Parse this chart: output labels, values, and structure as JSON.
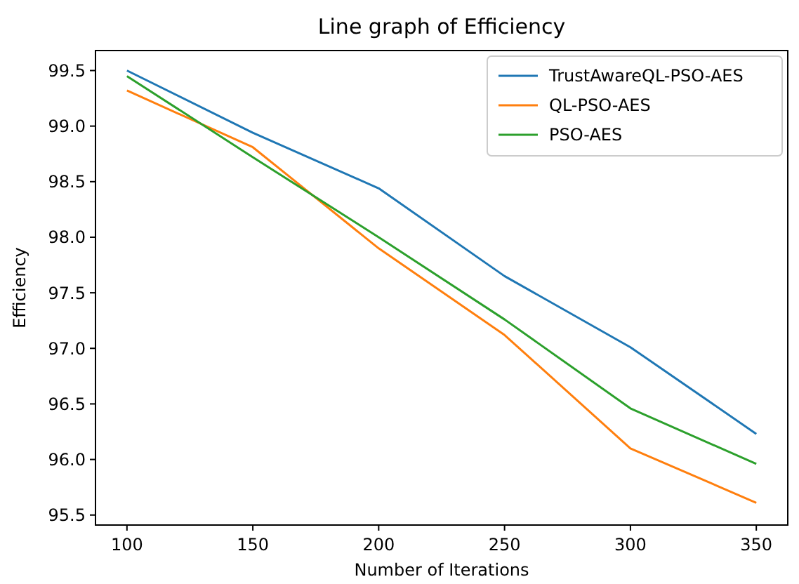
{
  "chart_data": {
    "type": "line",
    "title": "Line graph of  Efficiency",
    "xlabel": "Number of Iterations",
    "ylabel": "Efficiency",
    "x": [
      100,
      150,
      200,
      250,
      300,
      350
    ],
    "series": [
      {
        "name": "TrustAwareQL-PSO-AES",
        "color": "#1f77b4",
        "values": [
          99.5,
          98.94,
          98.44,
          97.65,
          97.01,
          96.23
        ]
      },
      {
        "name": "QL-PSO-AES",
        "color": "#ff7f0e",
        "values": [
          99.32,
          98.81,
          97.9,
          97.12,
          96.1,
          95.61
        ]
      },
      {
        "name": "PSO-AES",
        "color": "#2ca02c",
        "values": [
          99.45,
          98.72,
          98.0,
          97.26,
          96.46,
          95.96
        ]
      }
    ],
    "xlim": [
      87.5,
      362.5
    ],
    "ylim": [
      95.41,
      99.68
    ],
    "xticks": [
      100,
      150,
      200,
      250,
      300,
      350
    ],
    "yticks": [
      {
        "value": 95.5,
        "label": "95.5"
      },
      {
        "value": 96,
        "label": "96.0"
      },
      {
        "value": 96.5,
        "label": "96.5"
      },
      {
        "value": 97,
        "label": "97.0"
      },
      {
        "value": 97.5,
        "label": "97.5"
      },
      {
        "value": 98,
        "label": "98.0"
      },
      {
        "value": 98.5,
        "label": "98.5"
      },
      {
        "value": 99,
        "label": "99.0"
      },
      {
        "value": 99.5,
        "label": "99.5"
      }
    ],
    "grid": false,
    "legend": "top right",
    "marker": "none",
    "line_style": "solid"
  }
}
